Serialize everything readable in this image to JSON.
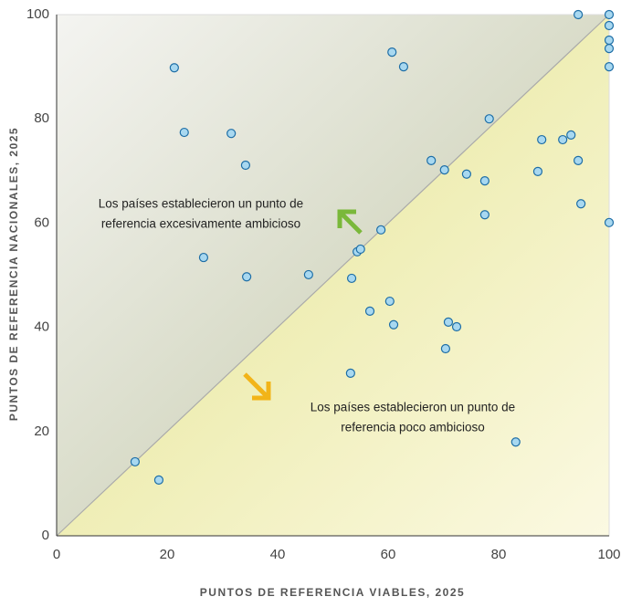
{
  "chart_data": {
    "type": "scatter",
    "x_label": "PUNTOS DE REFERENCIA VIABLES, 2025",
    "y_label": "PUNTOS DE REFERENCIA NACIONALES, 2025",
    "annotations": [
      [
        "Los países establecieron un punto de",
        "referencia excesivamente ambicioso"
      ],
      [
        "Los países establecieron un punto de",
        "referencia poco ambicioso"
      ]
    ],
    "x": [
      21.3,
      23.1,
      31.6,
      34.2,
      26.6,
      34.4,
      45.6,
      14.2,
      18.5,
      60.7,
      62.8,
      94.4,
      100,
      100,
      100,
      100,
      100,
      78.3,
      87.8,
      91.6,
      93.1,
      94.4,
      87.1,
      67.8,
      70.2,
      74.2,
      77.5,
      77.5,
      94.9,
      100,
      58.7,
      54.4,
      55.0,
      53.4,
      60.3,
      56.7,
      61.0,
      70.9,
      72.4,
      70.4,
      53.2,
      83.1
    ],
    "values": [
      89.8,
      77.4,
      77.2,
      71.1,
      53.4,
      49.7,
      50.1,
      14.2,
      10.7,
      92.8,
      90.0,
      100,
      100,
      97.9,
      95.1,
      93.5,
      90.0,
      80.0,
      76.0,
      76.0,
      76.9,
      72.0,
      69.9,
      72.0,
      70.2,
      69.4,
      68.1,
      61.6,
      63.7,
      60.1,
      58.7,
      54.5,
      55.0,
      49.4,
      45.0,
      43.1,
      40.5,
      41.0,
      40.1,
      35.9,
      31.2,
      18.0
    ],
    "color": "#a8d8f0",
    "xlim": [
      0,
      100
    ],
    "ylim": [
      0,
      100
    ],
    "xticks": [
      0,
      20,
      40,
      60,
      80,
      100
    ],
    "yticks": [
      0,
      20,
      40,
      60,
      80,
      100
    ],
    "grid": false
  }
}
